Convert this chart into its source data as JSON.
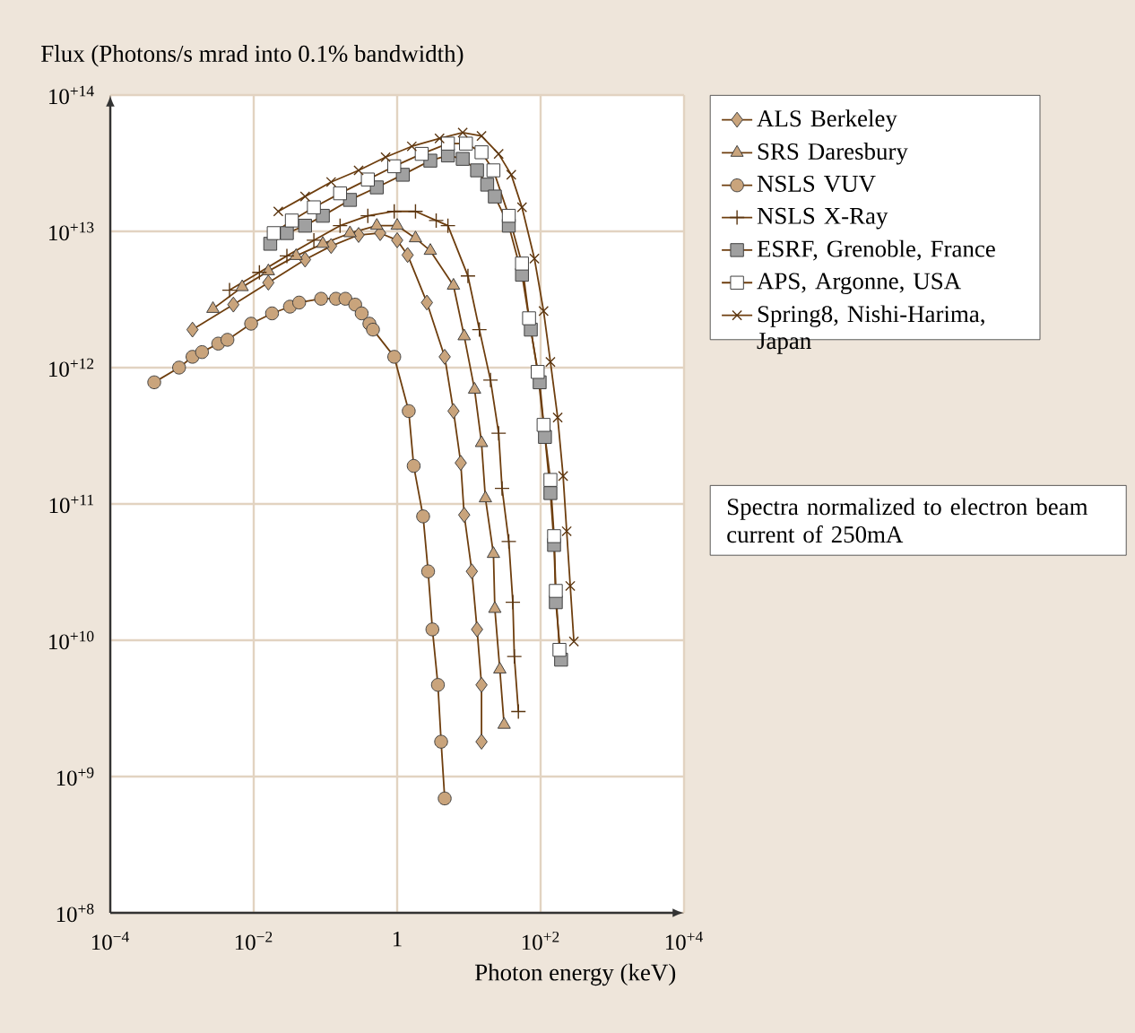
{
  "chart_data": {
    "type": "line",
    "ylabel": "Flux (Photons/s mrad into 0.1% bandwidth)",
    "xlabel": "Photon energy (keV)",
    "log": "xy",
    "xlim": [
      0.0001,
      10000
    ],
    "ylim": [
      100000000,
      100000000000000
    ],
    "xticks": [
      {
        "value": 0.0001,
        "label": "10$^{−4}$"
      },
      {
        "value": 0.01,
        "label": "10$^{−2}$"
      },
      1,
      {
        "value": 100,
        "label": "10$^{+2}$"
      },
      {
        "value": 10000,
        "label": "10$^{+4}$"
      }
    ],
    "yticks": [
      {
        "value": 100000000,
        "label": "10$^{+8}$"
      },
      {
        "value": 1000000000,
        "label": "10$^{+9}$"
      },
      {
        "value": 10000000000,
        "label": "10$^{+10}$"
      },
      {
        "value": 100000000000,
        "label": "10$^{+11}$"
      },
      {
        "value": 1000000000000,
        "label": "10$^{+12}$"
      },
      {
        "value": 10000000000000,
        "label": "10$^{+13}$"
      },
      {
        "value": 100000000000000,
        "label": "10$^{+14}$"
      }
    ],
    "grid": true,
    "legend": "right",
    "annotations": [
      "Spectra normalized to electron beam current of 250mA"
    ],
    "series": [
      {
        "name": "ALS Berkeley",
        "color": "#c9a47c",
        "marker": "diamond",
        "x": [
          0.0014,
          0.0052,
          0.016,
          0.052,
          0.12,
          0.29,
          0.58,
          1.0,
          1.4,
          2.6,
          4.6,
          6.1,
          7.7,
          8.6,
          11,
          13,
          15,
          15
        ],
        "values": [
          1900000000000.0,
          2900000000000.0,
          4200000000000.0,
          6200000000000.0,
          7800000000000.0,
          9400000000000.0,
          9700000000000.0,
          8600000000000.0,
          6700000000000.0,
          3000000000000.0,
          1200000000000.0,
          480000000000.0,
          200000000000.0,
          83000000000.0,
          32000000000.0,
          12000000000.0,
          4700000000.0,
          1800000000.0
        ]
      },
      {
        "name": "SRS Daresbury",
        "color": "#c9a47c",
        "marker": "triangle",
        "x": [
          0.0027,
          0.0069,
          0.016,
          0.039,
          0.092,
          0.22,
          0.52,
          1.0,
          1.8,
          2.9,
          6.1,
          8.6,
          12,
          15,
          17,
          22,
          23,
          27,
          31
        ],
        "values": [
          2700000000000.0,
          3900000000000.0,
          5100000000000.0,
          6600000000000.0,
          8100000000000.0,
          9700000000000.0,
          11000000000000.0,
          11000000000000.0,
          8900000000000.0,
          7200000000000.0,
          4000000000000.0,
          1700000000000.0,
          690000000000.0,
          280000000000.0,
          110000000000.0,
          43000000000.0,
          17000000000.0,
          6100000000.0,
          2400000000.0
        ]
      },
      {
        "name": "NSLS VUV",
        "color": "#c9a47c",
        "marker": "circle",
        "x": [
          0.00041,
          0.00091,
          0.0014,
          0.0019,
          0.0032,
          0.0043,
          0.0092,
          0.018,
          0.032,
          0.043,
          0.087,
          0.14,
          0.19,
          0.26,
          0.32,
          0.41,
          0.46,
          0.91,
          1.45,
          1.7,
          2.3,
          2.7,
          3.1,
          3.7,
          4.1,
          4.6
        ],
        "values": [
          780000000000.0,
          1000000000000.0,
          1200000000000.0,
          1300000000000.0,
          1500000000000.0,
          1600000000000.0,
          2100000000000.0,
          2500000000000.0,
          2800000000000.0,
          3000000000000.0,
          3200000000000.0,
          3200000000000.0,
          3200000000000.0,
          2900000000000.0,
          2500000000000.0,
          2100000000000.0,
          1900000000000.0,
          1200000000000.0,
          480000000000.0,
          190000000000.0,
          81000000000.0,
          32000000000.0,
          12000000000.0,
          4700000000.0,
          1800000000.0,
          690000000.0
        ]
      },
      {
        "name": "NSLS X-Ray",
        "color": "#5a3510",
        "marker": "plus",
        "x": [
          0.0046,
          0.012,
          0.029,
          0.069,
          0.16,
          0.39,
          0.91,
          1.8,
          3.5,
          5.1,
          9.7,
          14,
          20,
          26,
          29,
          36,
          41,
          43,
          49
        ],
        "values": [
          3700000000000.0,
          5000000000000.0,
          6600000000000.0,
          8600000000000.0,
          11000000000000.0,
          13000000000000.0,
          14000000000000.0,
          14000000000000.0,
          12000000000000.0,
          11000000000000.0,
          4700000000000.0,
          1900000000000.0,
          810000000000.0,
          330000000000.0,
          130000000000.0,
          53000000000.0,
          19000000000.0,
          7600000000.0,
          3000000000.0
        ]
      },
      {
        "name": "ESRF, Grenoble, France",
        "color": "#a0a0a0",
        "marker": "square",
        "x": [
          0.017,
          0.029,
          0.052,
          0.092,
          0.22,
          0.52,
          1.2,
          2.9,
          5.1,
          8.2,
          13,
          18,
          23,
          36,
          55,
          73,
          97,
          115,
          137,
          154,
          163,
          193
        ],
        "values": [
          8100000000000.0,
          9700000000000.0,
          11000000000000.0,
          13000000000000.0,
          17000000000000.0,
          21000000000000.0,
          26000000000000.0,
          33000000000000.0,
          36000000000000.0,
          34000000000000.0,
          28000000000000.0,
          22000000000000.0,
          18000000000000.0,
          11000000000000.0,
          4800000000000.0,
          1900000000000.0,
          780000000000.0,
          310000000000.0,
          120000000000.0,
          50000000000.0,
          19000000000.0,
          7200000000.0
        ]
      },
      {
        "name": "APS, Argonne, USA",
        "color": "#ffffff",
        "marker": "square",
        "x": [
          0.019,
          0.034,
          0.069,
          0.16,
          0.39,
          0.91,
          2.2,
          5.1,
          9.1,
          15,
          22,
          36,
          55,
          69,
          91,
          110,
          137,
          154,
          163,
          183
        ],
        "values": [
          9700000000000.0,
          12000000000000.0,
          15000000000000.0,
          19000000000000.0,
          24000000000000.0,
          30000000000000.0,
          37000000000000.0,
          44000000000000.0,
          44000000000000.0,
          38000000000000.0,
          28000000000000.0,
          13000000000000.0,
          5800000000000.0,
          2300000000000.0,
          930000000000.0,
          380000000000.0,
          150000000000.0,
          58000000000.0,
          23000000000.0,
          8500000000.0
        ]
      },
      {
        "name": "Spring8, Nishi-Harima, Japan",
        "color": "#5a3510",
        "marker": "cross",
        "x": [
          0.022,
          0.052,
          0.12,
          0.29,
          0.69,
          1.6,
          3.9,
          8.2,
          15,
          26,
          39,
          55,
          82,
          110,
          137,
          173,
          206,
          231,
          259,
          291
        ],
        "values": [
          14000000000000.0,
          18000000000000.0,
          23000000000000.0,
          28000000000000.0,
          35000000000000.0,
          42000000000000.0,
          48000000000000.0,
          53000000000000.0,
          50000000000000.0,
          37000000000000.0,
          26000000000000.0,
          15000000000000.0,
          6300000000000.0,
          2600000000000.0,
          1100000000000.0,
          430000000000.0,
          160000000000.0,
          63000000000.0,
          25000000000.0,
          9800000000.0
        ]
      }
    ]
  }
}
